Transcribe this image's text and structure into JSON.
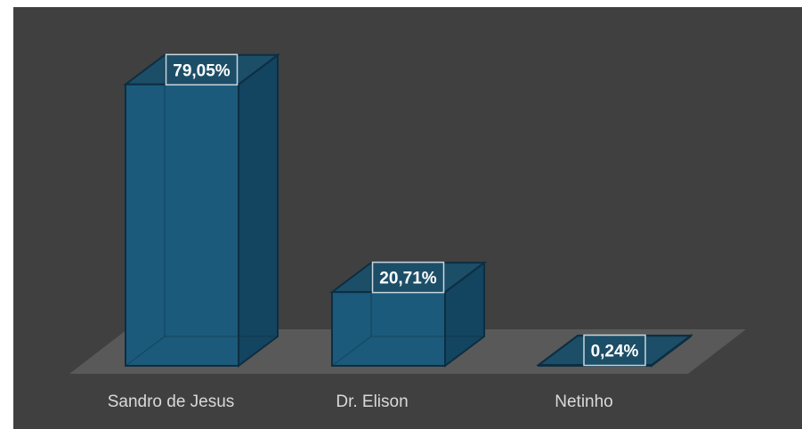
{
  "chart_data": {
    "type": "bar",
    "style": "3d-column",
    "categories": [
      "Sandro de Jesus",
      "Dr. Elison",
      "Netinho"
    ],
    "values": [
      79.05,
      20.71,
      0.24
    ],
    "data_labels": [
      "79,05%",
      "20,71%",
      "0,24%"
    ],
    "ylim": [
      0,
      80
    ],
    "grid": false,
    "legend": "none",
    "colors": {
      "background": "#404040",
      "floor": "#595959",
      "bar_front": "#1b5a7a",
      "bar_side": "#134460",
      "bar_top": "#1d4e68",
      "bar_edge": "#0d2e42",
      "category_label": "#d9d9d9",
      "data_label": "#ffffff",
      "data_label_border": "#c9d6de"
    }
  }
}
